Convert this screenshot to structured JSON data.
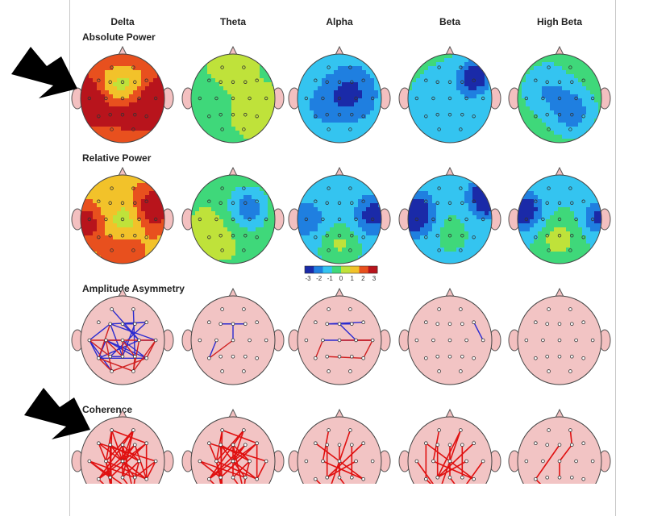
{
  "bands": [
    "Delta",
    "Theta",
    "Alpha",
    "Beta",
    "High Beta"
  ],
  "sections": [
    {
      "label": "Absolute Power",
      "type": "map"
    },
    {
      "label": "Relative Power",
      "type": "map"
    },
    {
      "label": "Amplitude Asymmetry",
      "type": "lines"
    },
    {
      "label": "Coherence",
      "type": "lines"
    }
  ],
  "colorbar": {
    "ticks": [
      "-3",
      "-2",
      "-1",
      "0",
      "1",
      "2",
      "3"
    ],
    "colors": [
      "#1a2aa8",
      "#1f7fe0",
      "#34c4f0",
      "#3fd87a",
      "#bfe23a",
      "#f2c22a",
      "#e8501e",
      "#b8141c"
    ]
  },
  "maps": [
    [
      {
        "base": 0.6,
        "blobs": [
          [
            -0.95,
            0.05,
            0.35,
            0.42
          ],
          [
            0.95,
            0.05,
            0.35,
            0.42
          ],
          [
            0.1,
            0.3,
            0.2,
            0.4
          ],
          [
            0.0,
            -0.35,
            -0.35,
            0.35
          ],
          [
            0.0,
            -0.8,
            0.2,
            0.3
          ]
        ]
      },
      {
        "base": -0.05,
        "blobs": [
          [
            0.0,
            -0.9,
            0.15,
            0.35
          ],
          [
            0.6,
            0.3,
            0.1,
            0.4
          ]
        ]
      },
      {
        "base": -0.35,
        "blobs": [
          [
            0.25,
            -0.1,
            -0.3,
            0.45
          ],
          [
            -0.5,
            0.2,
            -0.1,
            0.35
          ]
        ]
      },
      {
        "base": -0.25,
        "blobs": [
          [
            0.6,
            -0.5,
            -0.5,
            0.25
          ],
          [
            0.0,
            0.2,
            -0.15,
            0.5
          ]
        ]
      },
      {
        "base": -0.15,
        "blobs": [
          [
            0.3,
            0.3,
            -0.3,
            0.35
          ],
          [
            -0.3,
            -0.2,
            -0.2,
            0.4
          ]
        ]
      }
    ],
    [
      {
        "base": 0.45,
        "blobs": [
          [
            0.75,
            -0.25,
            0.35,
            0.35
          ],
          [
            -0.95,
            0.1,
            0.35,
            0.3
          ],
          [
            0.0,
            0.75,
            0.2,
            0.35
          ],
          [
            0.1,
            0.05,
            -0.2,
            0.3
          ]
        ]
      },
      {
        "base": -0.05,
        "blobs": [
          [
            0.35,
            -0.25,
            -0.35,
            0.35
          ],
          [
            -0.4,
            0.3,
            0.1,
            0.4
          ]
        ]
      },
      {
        "base": -0.35,
        "blobs": [
          [
            0.8,
            -0.1,
            -0.35,
            0.3
          ],
          [
            -0.8,
            0.0,
            -0.2,
            0.35
          ],
          [
            0.0,
            0.55,
            0.2,
            0.3
          ]
        ]
      },
      {
        "base": -0.4,
        "blobs": [
          [
            -0.85,
            -0.1,
            -0.55,
            0.3
          ],
          [
            0.9,
            -0.5,
            -0.55,
            0.28
          ],
          [
            0.0,
            0.3,
            0.1,
            0.4
          ]
        ]
      },
      {
        "base": -0.3,
        "blobs": [
          [
            -0.85,
            -0.2,
            -0.45,
            0.3
          ],
          [
            0.95,
            -0.05,
            -0.35,
            0.25
          ],
          [
            0.0,
            0.45,
            0.25,
            0.3
          ]
        ]
      }
    ]
  ],
  "connections": [
    [
      {
        "color": "#2a2ad0",
        "pairs": [
          [
            3,
            6
          ],
          [
            4,
            5
          ],
          [
            6,
            13
          ],
          [
            3,
            14
          ],
          [
            8,
            15
          ],
          [
            9,
            16
          ],
          [
            10,
            11
          ],
          [
            7,
            17
          ],
          [
            8,
            12
          ],
          [
            3,
            11
          ],
          [
            4,
            10
          ],
          [
            12,
            16
          ],
          [
            8,
            16
          ],
          [
            7,
            12
          ],
          [
            5,
            14
          ],
          [
            6,
            4
          ],
          [
            0,
            10
          ],
          [
            1,
            15
          ],
          [
            3,
            7
          ],
          [
            8,
            9
          ],
          [
            13,
            14
          ],
          [
            10,
            12
          ]
        ]
      },
      {
        "color": "#d02020",
        "pairs": [
          [
            8,
            17
          ],
          [
            9,
            15
          ],
          [
            11,
            16
          ],
          [
            12,
            18
          ],
          [
            13,
            7
          ],
          [
            8,
            14
          ],
          [
            12,
            17
          ],
          [
            16,
            17
          ],
          [
            10,
            18
          ],
          [
            11,
            18
          ],
          [
            7,
            11
          ],
          [
            14,
            9
          ],
          [
            15,
            18
          ],
          [
            3,
            12
          ]
        ]
      }
    ],
    [
      {
        "color": "#2a2ad0",
        "pairs": [
          [
            3,
            5
          ],
          [
            8,
            12
          ],
          [
            4,
            9
          ],
          [
            3,
            4
          ]
        ]
      },
      {
        "color": "#d02020",
        "pairs": [
          [
            9,
            12
          ]
        ]
      }
    ],
    [
      {
        "color": "#2a2ad0",
        "pairs": [
          [
            3,
            5
          ],
          [
            8,
            11
          ],
          [
            3,
            6
          ],
          [
            4,
            10
          ]
        ]
      },
      {
        "color": "#d02020",
        "pairs": [
          [
            8,
            12
          ],
          [
            9,
            11
          ],
          [
            10,
            11
          ],
          [
            11,
            16
          ],
          [
            13,
            16
          ]
        ]
      }
    ],
    [
      {
        "color": "#2a2ad0",
        "pairs": [
          [
            6,
            11
          ]
        ]
      }
    ],
    []
  ],
  "coherence": [
    {
      "color": "#e01010",
      "pairs": [
        [
          0,
          6
        ],
        [
          0,
          8
        ],
        [
          1,
          8
        ],
        [
          1,
          9
        ],
        [
          2,
          8
        ],
        [
          3,
          9
        ],
        [
          3,
          10
        ],
        [
          4,
          10
        ],
        [
          5,
          12
        ],
        [
          6,
          12
        ],
        [
          7,
          13
        ],
        [
          8,
          13
        ],
        [
          9,
          15
        ],
        [
          10,
          15
        ],
        [
          11,
          16
        ],
        [
          12,
          17
        ],
        [
          13,
          17
        ],
        [
          14,
          18
        ],
        [
          15,
          18
        ],
        [
          3,
          17
        ],
        [
          4,
          18
        ],
        [
          6,
          16
        ],
        [
          7,
          15
        ],
        [
          8,
          16
        ],
        [
          1,
          12
        ],
        [
          0,
          13
        ],
        [
          2,
          11
        ],
        [
          5,
          9
        ],
        [
          4,
          14
        ],
        [
          6,
          13
        ],
        [
          8,
          17
        ],
        [
          9,
          16
        ],
        [
          10,
          14
        ],
        [
          3,
          13
        ],
        [
          1,
          14
        ],
        [
          2,
          16
        ],
        [
          7,
          18
        ],
        [
          0,
          9
        ],
        [
          5,
          16
        ],
        [
          11,
          15
        ]
      ]
    },
    {
      "color": "#e01010",
      "pairs": [
        [
          0,
          6
        ],
        [
          0,
          8
        ],
        [
          1,
          8
        ],
        [
          1,
          9
        ],
        [
          2,
          8
        ],
        [
          3,
          9
        ],
        [
          3,
          10
        ],
        [
          4,
          10
        ],
        [
          5,
          12
        ],
        [
          6,
          12
        ],
        [
          7,
          13
        ],
        [
          8,
          13
        ],
        [
          9,
          15
        ],
        [
          10,
          15
        ],
        [
          11,
          16
        ],
        [
          12,
          17
        ],
        [
          13,
          17
        ],
        [
          14,
          18
        ],
        [
          15,
          18
        ],
        [
          3,
          17
        ],
        [
          4,
          18
        ],
        [
          6,
          16
        ],
        [
          7,
          15
        ],
        [
          8,
          16
        ],
        [
          1,
          12
        ],
        [
          0,
          13
        ],
        [
          2,
          11
        ],
        [
          5,
          9
        ],
        [
          4,
          14
        ],
        [
          6,
          13
        ],
        [
          8,
          17
        ],
        [
          9,
          16
        ],
        [
          10,
          14
        ]
      ]
    },
    {
      "color": "#e01010",
      "pairs": [
        [
          0,
          8
        ],
        [
          1,
          9
        ],
        [
          3,
          13
        ],
        [
          4,
          14
        ],
        [
          6,
          13
        ],
        [
          8,
          16
        ],
        [
          9,
          17
        ],
        [
          10,
          13
        ],
        [
          12,
          17
        ],
        [
          14,
          18
        ],
        [
          2,
          16
        ],
        [
          5,
          15
        ]
      ]
    },
    {
      "color": "#e01010",
      "pairs": [
        [
          0,
          8
        ],
        [
          1,
          9
        ],
        [
          2,
          12
        ],
        [
          3,
          13
        ],
        [
          4,
          14
        ],
        [
          6,
          13
        ],
        [
          8,
          16
        ],
        [
          9,
          17
        ],
        [
          10,
          13
        ],
        [
          12,
          17
        ],
        [
          14,
          18
        ],
        [
          2,
          16
        ],
        [
          5,
          15
        ],
        [
          7,
          17
        ],
        [
          11,
          18
        ],
        [
          1,
          13
        ]
      ]
    },
    {
      "color": "#e01010",
      "pairs": [
        [
          1,
          5
        ],
        [
          5,
          9
        ],
        [
          9,
          14
        ],
        [
          4,
          12
        ],
        [
          12,
          17
        ]
      ]
    }
  ]
}
